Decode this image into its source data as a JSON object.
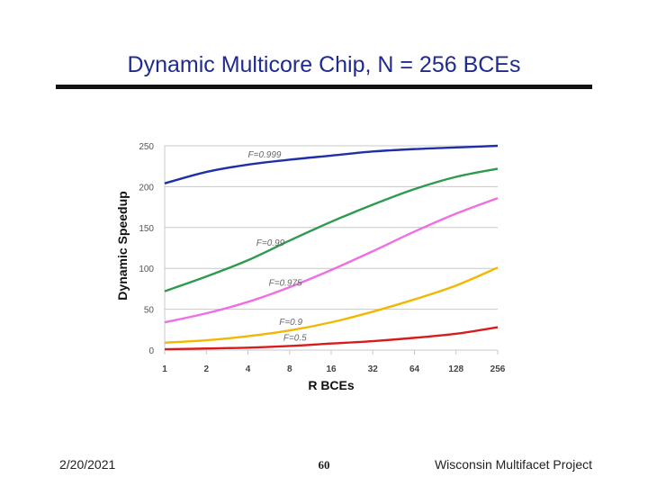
{
  "slide": {
    "title": "Dynamic Multicore Chip, N = 256 BCEs",
    "footer_date": "2/20/2021",
    "page_number": "60",
    "footer_org": "Wisconsin Multifacet Project"
  },
  "chart_data": {
    "type": "line",
    "xlabel": "R BCEs",
    "ylabel": "Dynamic Speedup",
    "x": [
      "1",
      "2",
      "4",
      "8",
      "16",
      "32",
      "64",
      "128",
      "256"
    ],
    "ylim": [
      0,
      250
    ],
    "y_ticks": [
      0,
      50,
      100,
      150,
      200,
      250
    ],
    "grid": true,
    "legend": "inline-labels",
    "series": [
      {
        "name": "F=0.999",
        "color": "#1f2fa6",
        "values": [
          204,
          218,
          227,
          233,
          238,
          243,
          246,
          248,
          250
        ]
      },
      {
        "name": "F=0.99",
        "color": "#2e9a4e",
        "values": [
          72,
          90,
          110,
          134,
          157,
          178,
          197,
          212,
          222
        ]
      },
      {
        "name": "F=0.975",
        "color": "#ee6fe4",
        "values": [
          34,
          45,
          59,
          77,
          98,
          121,
          145,
          167,
          186
        ]
      },
      {
        "name": "F=0.9",
        "color": "#f2b800",
        "values": [
          9,
          12,
          17,
          24,
          34,
          47,
          62,
          79,
          101
        ]
      },
      {
        "name": "F=0.5",
        "color": "#d81b1b",
        "values": [
          1,
          2,
          3,
          5,
          8,
          11,
          15,
          20,
          28
        ]
      }
    ]
  }
}
